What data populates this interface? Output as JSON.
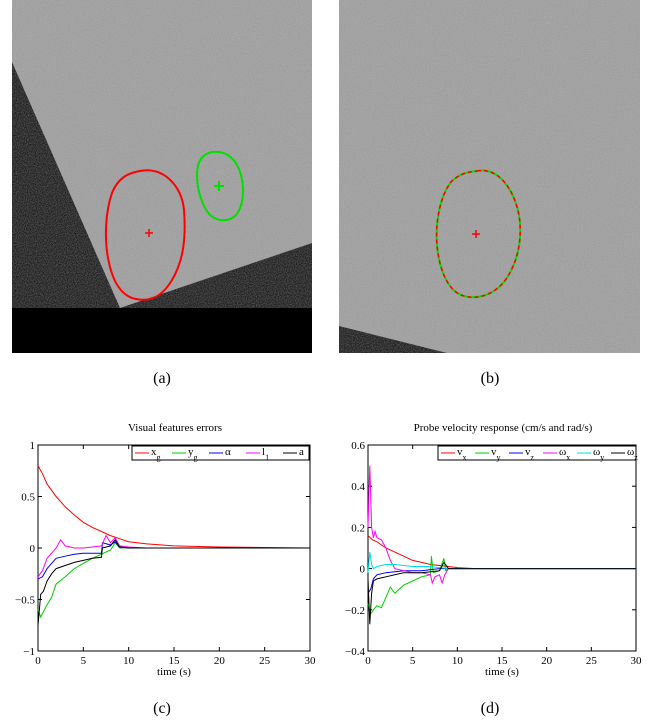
{
  "captions": {
    "a": "(a)",
    "b": "(b)",
    "c": "(c)",
    "d": "(d)"
  },
  "colors": {
    "red": "#ff0000",
    "green": "#00cc00",
    "blue": "#0000ff",
    "magenta": "#ff00ff",
    "cyan": "#00dddd",
    "black": "#000000"
  },
  "chart_data": [
    {
      "type": "line",
      "title": "Visual features errors",
      "xlabel": "time (s)",
      "ylabel": "",
      "xlim": [
        0,
        30
      ],
      "ylim": [
        -1,
        1
      ],
      "xticks": [
        0,
        5,
        10,
        15,
        20,
        25,
        30
      ],
      "yticks": [
        -1,
        -0.5,
        0,
        0.5,
        1
      ],
      "ytick_labels": [
        "−1",
        "−0.5",
        "0",
        "0.5",
        "1"
      ],
      "legend_position": "top-right",
      "series": [
        {
          "name": "x",
          "sub": "g",
          "color": "#ff0000",
          "x": [
            0,
            0.5,
            1,
            2,
            3,
            4,
            5,
            6,
            7,
            8,
            9,
            10,
            12,
            15,
            20,
            25,
            30
          ],
          "y": [
            0.8,
            0.72,
            0.62,
            0.5,
            0.4,
            0.32,
            0.25,
            0.2,
            0.16,
            0.12,
            0.09,
            0.06,
            0.04,
            0.02,
            0.01,
            0.005,
            0.0
          ]
        },
        {
          "name": "y",
          "sub": "g",
          "color": "#00cc00",
          "x": [
            0,
            0.3,
            0.6,
            1,
            1.5,
            2,
            3,
            4,
            5,
            6,
            7,
            7.5,
            8,
            8.5,
            9,
            10,
            12,
            15,
            20,
            30
          ],
          "y": [
            -0.6,
            -0.67,
            -0.62,
            -0.55,
            -0.48,
            -0.35,
            -0.28,
            -0.2,
            -0.15,
            -0.1,
            -0.06,
            -0.04,
            -0.02,
            0.05,
            0.0,
            0.0,
            0.0,
            0.0,
            0.0,
            0.0
          ]
        },
        {
          "name": "α",
          "sub": "",
          "color": "#0000ff",
          "x": [
            0,
            0.5,
            1,
            1.5,
            2,
            3,
            4,
            5,
            6,
            7,
            7.1,
            8,
            8.5,
            9,
            10,
            12,
            15,
            20,
            30
          ],
          "y": [
            -0.3,
            -0.28,
            -0.2,
            -0.15,
            -0.1,
            -0.08,
            -0.06,
            -0.05,
            -0.05,
            -0.05,
            0.05,
            0.03,
            0.06,
            0.01,
            0.0,
            0.0,
            0.0,
            0.0,
            0.0
          ]
        },
        {
          "name": "l",
          "sub": "1",
          "color": "#ff00ff",
          "x": [
            0,
            0.5,
            1,
            1.5,
            2,
            2.5,
            3,
            4,
            5,
            6,
            7,
            7.5,
            8,
            8.5,
            9,
            10,
            12,
            15,
            20,
            30
          ],
          "y": [
            -0.28,
            -0.22,
            -0.1,
            -0.05,
            0.0,
            0.08,
            0.02,
            0.0,
            0.0,
            0.01,
            0.02,
            0.12,
            0.05,
            0.1,
            0.02,
            0.01,
            0.0,
            0.0,
            0.0,
            0.0
          ]
        },
        {
          "name": "a",
          "sub": "",
          "color": "#000000",
          "x": [
            0,
            0.3,
            0.6,
            1,
            1.5,
            2,
            3,
            4,
            5,
            6,
            7,
            7.1,
            8,
            8.5,
            9,
            10,
            12,
            15,
            20,
            30
          ],
          "y": [
            -0.75,
            -0.45,
            -0.42,
            -0.32,
            -0.25,
            -0.2,
            -0.17,
            -0.14,
            -0.12,
            -0.1,
            -0.09,
            0.0,
            0.02,
            0.08,
            0.01,
            0.0,
            0.0,
            0.0,
            0.0,
            0.0
          ]
        }
      ]
    },
    {
      "type": "line",
      "title": "Probe velocity response (cm/s and rad/s)",
      "xlabel": "time (s)",
      "ylabel": "",
      "xlim": [
        0,
        30
      ],
      "ylim": [
        -0.4,
        0.6
      ],
      "xticks": [
        0,
        5,
        10,
        15,
        20,
        25,
        30
      ],
      "yticks": [
        -0.4,
        -0.2,
        0,
        0.2,
        0.4,
        0.6
      ],
      "ytick_labels": [
        "−0.4",
        "−0.2",
        "0",
        "0.2",
        "0.4",
        "0.6"
      ],
      "legend_position": "top-right",
      "series": [
        {
          "name": "v",
          "sub": "x",
          "color": "#ff0000",
          "x": [
            0,
            0.5,
            1,
            2,
            3,
            4,
            5,
            6,
            7,
            8,
            9,
            10,
            12,
            15,
            20,
            30
          ],
          "y": [
            0.16,
            0.14,
            0.13,
            0.1,
            0.08,
            0.06,
            0.04,
            0.03,
            0.02,
            0.015,
            0.01,
            0.005,
            0.0,
            0.0,
            0.0,
            0.0
          ]
        },
        {
          "name": "v",
          "sub": "y",
          "color": "#00cc00",
          "x": [
            0,
            0.3,
            0.6,
            1,
            1.5,
            2,
            2.5,
            3,
            4,
            5,
            6,
            7,
            7.1,
            7.3,
            8,
            8.5,
            8.7,
            9,
            10,
            12,
            15,
            20,
            30
          ],
          "y": [
            -0.17,
            -0.22,
            -0.2,
            -0.18,
            -0.19,
            -0.14,
            -0.09,
            -0.12,
            -0.08,
            -0.06,
            -0.04,
            -0.03,
            0.06,
            -0.02,
            -0.01,
            0.05,
            -0.01,
            0.0,
            0.0,
            0.0,
            0.0,
            0.0,
            0.0
          ]
        },
        {
          "name": "v",
          "sub": "z",
          "color": "#0000ff",
          "x": [
            0,
            0.3,
            0.6,
            1,
            2,
            3,
            4,
            5,
            6,
            7,
            8,
            9,
            10,
            12,
            15,
            20,
            30
          ],
          "y": [
            -0.12,
            -0.1,
            -0.05,
            -0.03,
            -0.02,
            -0.015,
            -0.01,
            -0.01,
            -0.01,
            -0.005,
            0.0,
            0.0,
            0.0,
            0.0,
            0.0,
            0.0,
            0.0
          ]
        },
        {
          "name": "ω",
          "sub": "x",
          "color": "#ff00ff",
          "x": [
            0,
            0.2,
            0.4,
            0.6,
            0.8,
            1,
            1.5,
            2,
            2.5,
            3,
            4,
            5,
            6,
            7,
            7.2,
            7.5,
            8,
            8.3,
            8.6,
            9,
            10,
            12,
            15,
            20,
            30
          ],
          "y": [
            0.2,
            0.5,
            0.2,
            0.15,
            0.18,
            0.15,
            0.14,
            0.1,
            0.04,
            0.0,
            -0.01,
            -0.02,
            -0.02,
            -0.03,
            -0.07,
            -0.04,
            -0.03,
            -0.07,
            -0.03,
            0.0,
            0.0,
            0.0,
            0.0,
            0.0,
            0.0
          ]
        },
        {
          "name": "ω",
          "sub": "y",
          "color": "#00dddd",
          "x": [
            0,
            0.2,
            0.4,
            0.6,
            1,
            2,
            3,
            4,
            5,
            6,
            7,
            8,
            9,
            10,
            12,
            15,
            20,
            30
          ],
          "y": [
            -0.02,
            0.08,
            0.02,
            0.0,
            0.01,
            0.02,
            0.02,
            0.015,
            0.01,
            0.01,
            0.01,
            0.005,
            0.0,
            0.0,
            0.0,
            0.0,
            0.0,
            0.0
          ]
        },
        {
          "name": "ω",
          "sub": "z",
          "color": "#000000",
          "x": [
            0,
            0.2,
            0.4,
            0.6,
            1,
            2,
            3,
            4,
            5,
            6,
            7,
            8,
            8.5,
            9,
            10,
            12,
            15,
            20,
            30
          ],
          "y": [
            -0.05,
            -0.27,
            -0.12,
            -0.06,
            -0.05,
            -0.04,
            -0.03,
            -0.02,
            -0.02,
            -0.02,
            -0.015,
            -0.01,
            0.03,
            0.0,
            0.0,
            0.0,
            0.0,
            0.0,
            0.0
          ]
        }
      ]
    }
  ]
}
